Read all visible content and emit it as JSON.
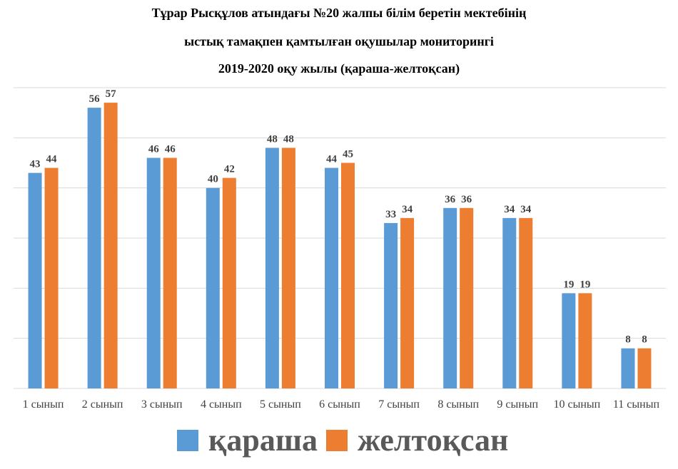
{
  "title_lines": [
    "Тұрар Рысқұлов атындағы №20 жалпы білім беретін мектебінің",
    "ыстық тамақпен қамтылған оқушылар мониторингі",
    "2019-2020 оқу жылы (қараша-желтоқсан)"
  ],
  "colors": {
    "series_1": "#5b9bd5",
    "series_2": "#ed7d31",
    "grid": "#d9d9d9",
    "label": "#404040"
  },
  "chart_data": {
    "type": "bar",
    "title": "Тұрар Рысқұлов атындағы №20 жалпы білім беретін мектебінің ыстық тамақпен қамтылған оқушылар мониторингі 2019-2020 оқу жылы (қараша-желтоқсан)",
    "categories": [
      "1 сынып",
      "2 сынып",
      "3 сынып",
      "4 сынып",
      "5 сынып",
      "6 сынып",
      "7 сынып",
      "8 сынып",
      "9 сынып",
      "10 сынып",
      "11 сынып"
    ],
    "series": [
      {
        "name": "қараша",
        "values": [
          43,
          56,
          46,
          40,
          48,
          44,
          33,
          36,
          34,
          19,
          8
        ]
      },
      {
        "name": "желтоқсан",
        "values": [
          44,
          57,
          46,
          42,
          48,
          45,
          34,
          36,
          34,
          19,
          8
        ]
      }
    ],
    "ylim": [
      0,
      60
    ],
    "grid": true,
    "data_labels": true,
    "legend_position": "bottom"
  }
}
